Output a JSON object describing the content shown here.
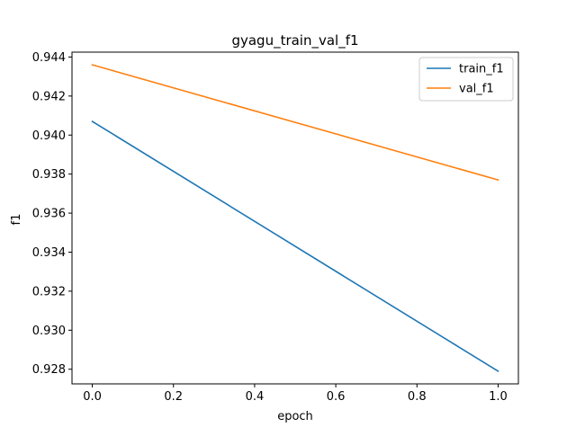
{
  "chart_data": {
    "type": "line",
    "title": "gyagu_train_val_f1",
    "xlabel": "epoch",
    "ylabel": "f1",
    "xlim": [
      -0.05,
      1.05
    ],
    "ylim": [
      0.92725,
      0.94425
    ],
    "x_ticks": [
      0.0,
      0.2,
      0.4,
      0.6,
      0.8,
      1.0
    ],
    "x_tick_labels": [
      "0.0",
      "0.2",
      "0.4",
      "0.6",
      "0.8",
      "1.0"
    ],
    "y_ticks": [
      0.928,
      0.93,
      0.932,
      0.934,
      0.936,
      0.938,
      0.94,
      0.942,
      0.944
    ],
    "y_tick_labels": [
      "0.928",
      "0.930",
      "0.932",
      "0.934",
      "0.936",
      "0.938",
      "0.940",
      "0.942",
      "0.944"
    ],
    "grid": false,
    "legend_position": "top-right",
    "x": [
      0.0,
      1.0
    ],
    "series": [
      {
        "name": "train_f1",
        "color": "#1f77b4",
        "values": [
          0.9407,
          0.9279
        ]
      },
      {
        "name": "val_f1",
        "color": "#ff7f0e",
        "values": [
          0.9436,
          0.9377
        ]
      }
    ]
  }
}
